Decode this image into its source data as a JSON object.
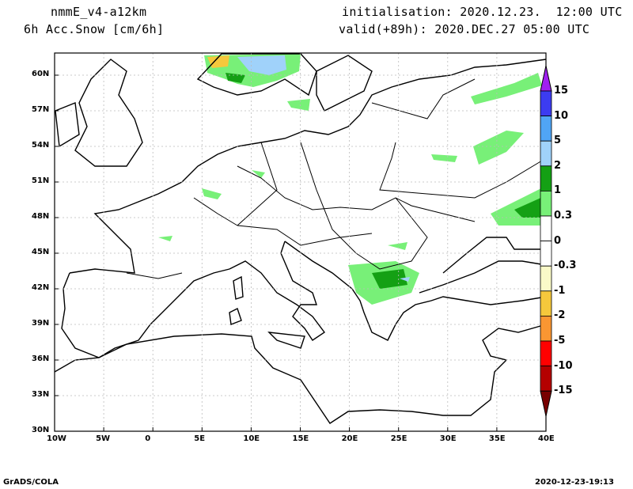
{
  "header": {
    "model": "nmmE_v4-a12km",
    "variable": "6h Acc.Snow [cm/6h]",
    "init": "initialisation: 2020.12.23.  12:00 UTC",
    "valid": "valid(+89h): 2020.DEC.27 05:00 UTC"
  },
  "axes": {
    "lon_labels": [
      "10W",
      "5W",
      "0",
      "5E",
      "10E",
      "15E",
      "20E",
      "25E",
      "30E",
      "35E",
      "40E"
    ],
    "lat_labels": [
      "60N",
      "57N",
      "54N",
      "51N",
      "48N",
      "45N",
      "42N",
      "39N",
      "36N",
      "33N",
      "30N"
    ]
  },
  "legend": {
    "labels": [
      "15",
      "10",
      "5",
      "2",
      "1",
      "0.3",
      "0",
      "-0.3",
      "-1",
      "-2",
      "-5",
      "-10",
      "-15"
    ],
    "colors": [
      "#a020f0",
      "#3c3cf0",
      "#50a5f5",
      "#a0d2fa",
      "#14a014",
      "#78f078",
      "#ffffff",
      "#ffffff",
      "#fafac8",
      "#f5c83c",
      "#fa9632",
      "#ff0000",
      "#b40000",
      "#780000"
    ]
  },
  "footer": {
    "left": "GrADS/COLA",
    "right": "2020-12-23-19:13"
  }
}
